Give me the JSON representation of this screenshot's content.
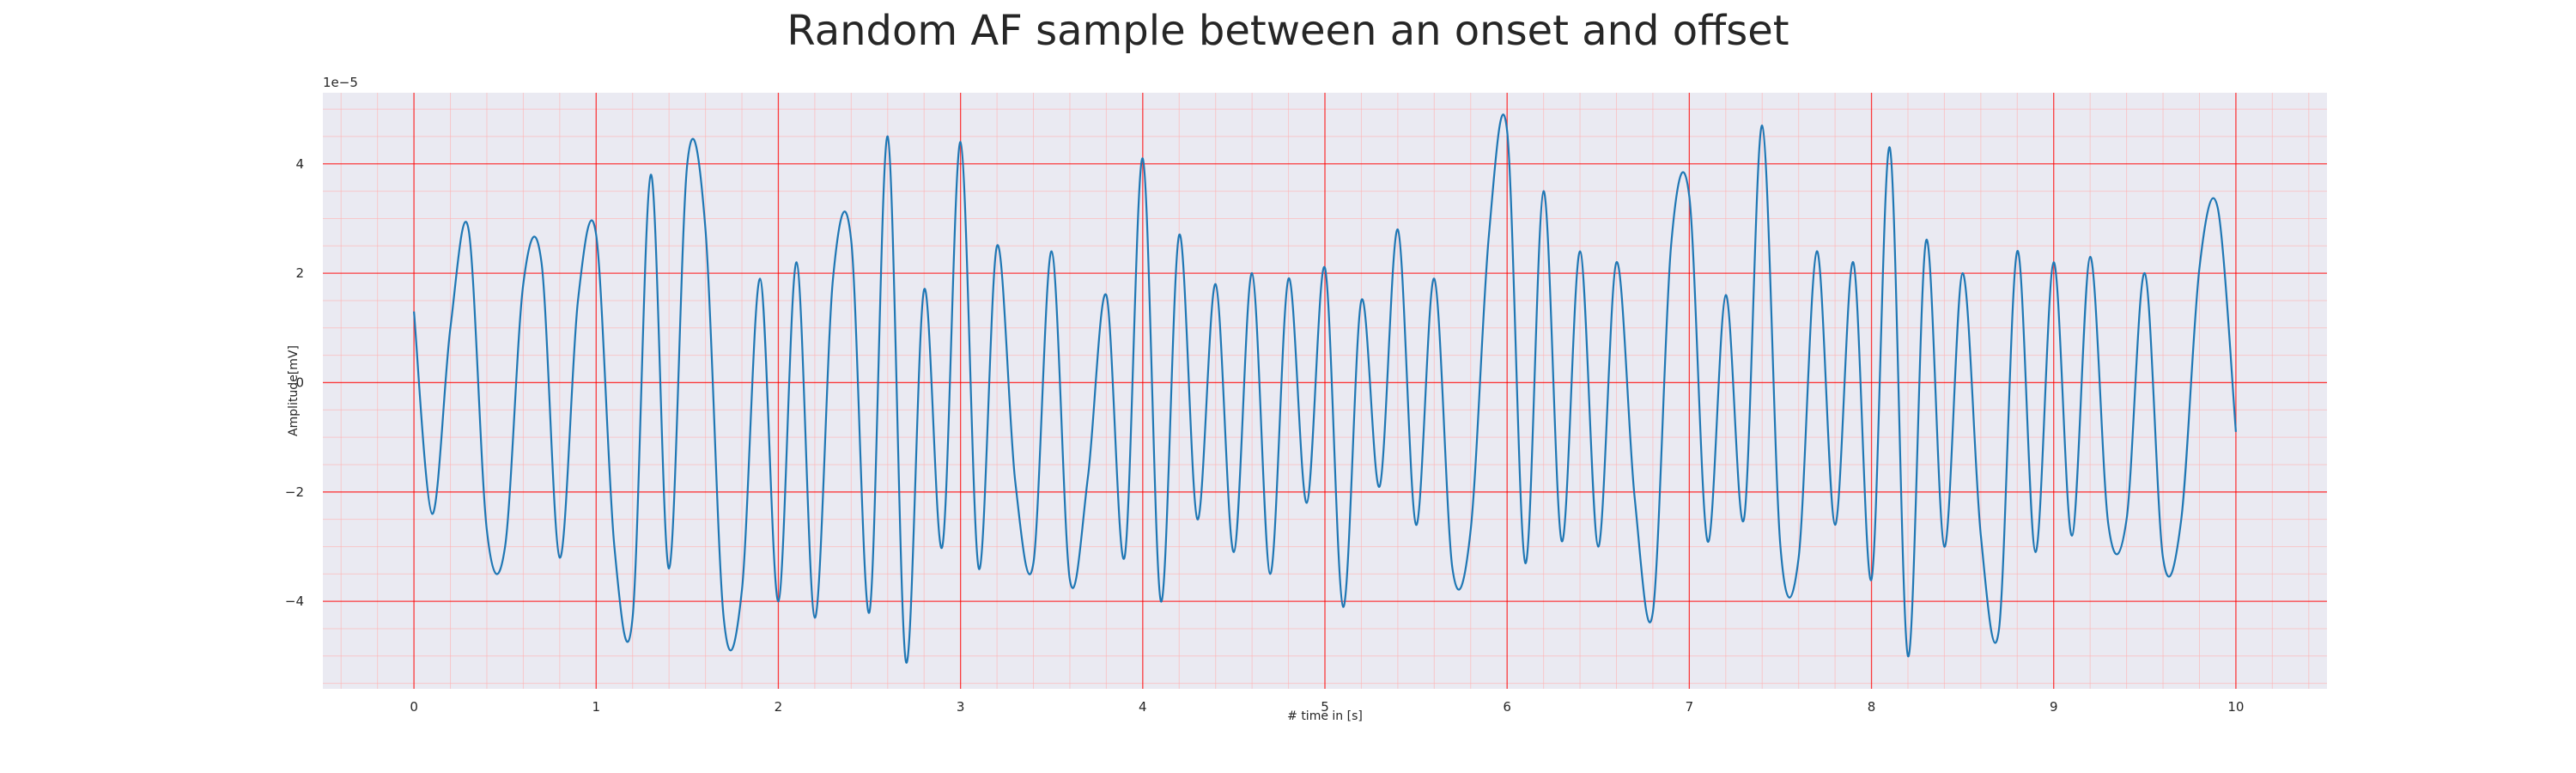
{
  "chart_data": {
    "type": "line",
    "title": "Random AF sample between an onset and offset",
    "xlabel": "# time in [s]",
    "ylabel": "Amplitude[mV]",
    "y_offset_text": "1e−5",
    "y_scale": 1e-05,
    "xlim": [
      -0.5,
      10.5
    ],
    "ylim": [
      -5.6,
      5.3
    ],
    "x_ticks": [
      0,
      1,
      2,
      3,
      4,
      5,
      6,
      7,
      8,
      9,
      10
    ],
    "y_ticks": [
      -4,
      -2,
      0,
      2,
      4
    ],
    "grid": "on (major and minor)",
    "colors": {
      "background": "#eaeaf2",
      "grid_major": "#ff0000",
      "grid_minor": "#ffb0b0",
      "line": "#1f77b4"
    },
    "series": [
      {
        "x": [
          0.0,
          0.1,
          0.2,
          0.3,
          0.4,
          0.5,
          0.6,
          0.7,
          0.8,
          0.9,
          1.0,
          1.1,
          1.2,
          1.3,
          1.4,
          1.5,
          1.6,
          1.7,
          1.8,
          1.9,
          2.0,
          2.1,
          2.2,
          2.3,
          2.4,
          2.5,
          2.6,
          2.7,
          2.8,
          2.9,
          3.0,
          3.1,
          3.2,
          3.3,
          3.4,
          3.5,
          3.6,
          3.7,
          3.8,
          3.9,
          4.0,
          4.1,
          4.2,
          4.3,
          4.4,
          4.5,
          4.6,
          4.7,
          4.8,
          4.9,
          5.0,
          5.1,
          5.2,
          5.3,
          5.4,
          5.5,
          5.6,
          5.7,
          5.8,
          5.9,
          6.0,
          6.1,
          6.2,
          6.3,
          6.4,
          6.5,
          6.6,
          6.7,
          6.8,
          6.9,
          7.0,
          7.1,
          7.2,
          7.3,
          7.4,
          7.5,
          7.6,
          7.7,
          7.8,
          7.9,
          8.0,
          8.1,
          8.2,
          8.3,
          8.4,
          8.5,
          8.6,
          8.7,
          8.8,
          8.9,
          9.0,
          9.1,
          9.2,
          9.3,
          9.4,
          9.5,
          9.6,
          9.7,
          9.8,
          9.9,
          10.0
        ],
        "y": [
          1.3,
          -2.4,
          1.0,
          2.8,
          -2.7,
          -3.0,
          1.8,
          2.2,
          -3.2,
          1.5,
          2.7,
          -3.0,
          -4.3,
          3.8,
          -3.4,
          4.0,
          2.8,
          -4.3,
          -3.8,
          1.9,
          -4.0,
          2.2,
          -4.3,
          1.9,
          2.6,
          -4.2,
          4.5,
          -5.1,
          1.7,
          -3.0,
          4.4,
          -3.4,
          2.5,
          -1.8,
          -3.3,
          2.4,
          -3.6,
          -1.7,
          1.6,
          -3.2,
          4.1,
          -4.0,
          2.7,
          -2.5,
          1.8,
          -3.1,
          2.0,
          -3.5,
          1.9,
          -2.2,
          2.1,
          -4.1,
          1.5,
          -1.9,
          2.8,
          -2.6,
          1.9,
          -3.4,
          -2.7,
          2.7,
          4.6,
          -3.3,
          3.5,
          -2.9,
          2.4,
          -3.0,
          2.2,
          -2.1,
          -4.2,
          2.5,
          3.4,
          -2.9,
          1.6,
          -2.5,
          4.7,
          -3.0,
          -3.2,
          2.4,
          -2.6,
          2.2,
          -3.6,
          4.3,
          -5.0,
          2.6,
          -3.0,
          2.0,
          -2.8,
          -4.5,
          2.4,
          -3.1,
          2.2,
          -2.8,
          2.3,
          -2.6,
          -2.5,
          2.0,
          -3.2,
          -2.5,
          2.1,
          3.2,
          -0.9
        ]
      }
    ]
  }
}
